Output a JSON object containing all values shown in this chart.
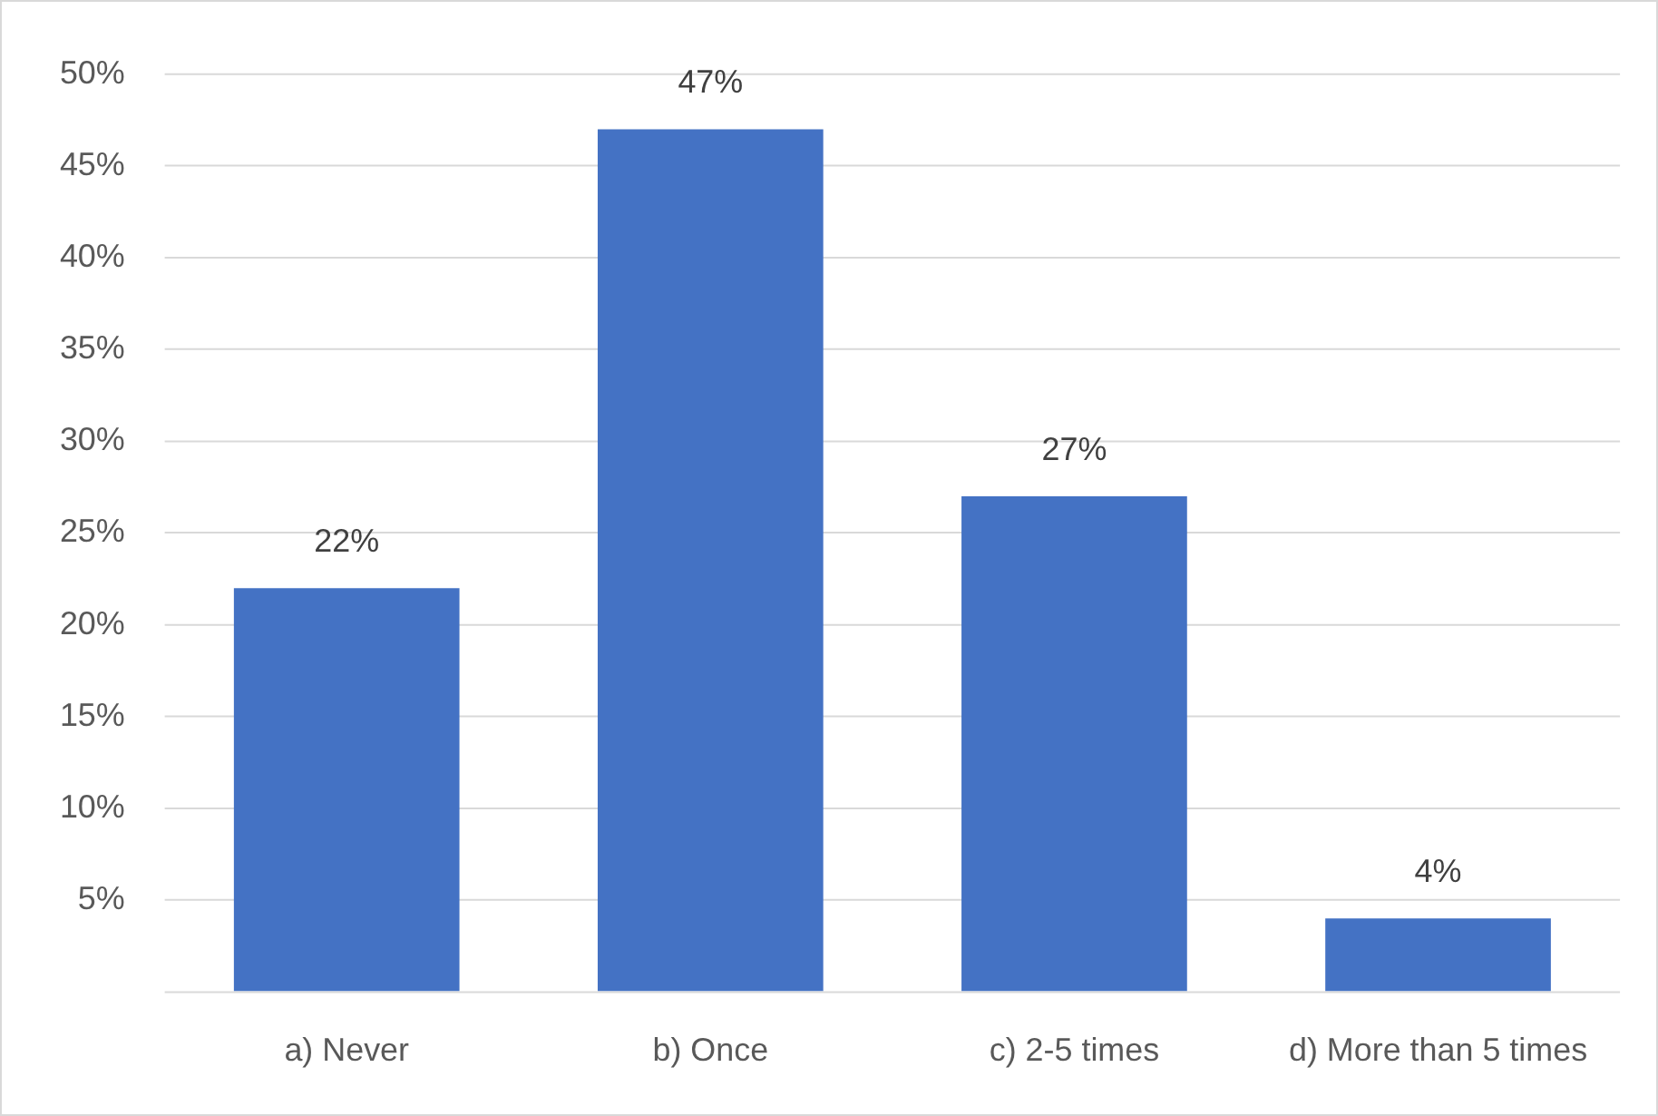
{
  "chart_data": {
    "type": "bar",
    "categories": [
      "a) Never",
      "b) Once",
      "c) 2-5 times",
      "d) More than 5 times"
    ],
    "values": [
      22,
      47,
      27,
      4
    ],
    "color": "#4472c4",
    "value_labels": [
      "22%",
      "47%",
      "27%",
      "4%"
    ],
    "ylim": [
      0,
      50
    ],
    "yticks": [
      {
        "value": 0,
        "label": null
      },
      {
        "value": 5,
        "label": "5%"
      },
      {
        "value": 10,
        "label": "10%"
      },
      {
        "value": 15,
        "label": "15%"
      },
      {
        "value": 20,
        "label": "20%"
      },
      {
        "value": 25,
        "label": "25%"
      },
      {
        "value": 30,
        "label": "30%"
      },
      {
        "value": 35,
        "label": "35%"
      },
      {
        "value": 40,
        "label": "40%"
      },
      {
        "value": 45,
        "label": "45%"
      },
      {
        "value": 50,
        "label": "50%"
      }
    ],
    "grid": "y",
    "legend": false
  }
}
